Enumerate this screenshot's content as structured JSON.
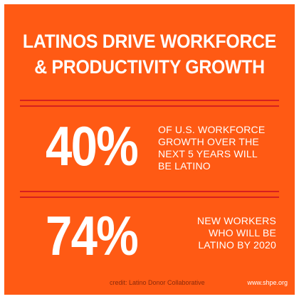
{
  "title": {
    "line1": "LATINOS DRIVE WORKFORCE",
    "line2": "& PRODUCTIVITY GROWTH"
  },
  "stats": [
    {
      "value": "40%",
      "lines": [
        "OF U.S. WORKFORCE",
        "GROWTH OVER THE",
        "NEXT 5 YEARS WILL",
        "BE LATINO"
      ]
    },
    {
      "value": "74%",
      "lines": [
        "NEW WORKERS",
        "WHO WILL BE",
        "LATINO BY 2020"
      ]
    }
  ],
  "footer": {
    "credit": "credit: Latino Donor Collaborative",
    "website": "www.shpe.org"
  },
  "colors": {
    "background": "#ff5a14",
    "rule": "#d61f1f",
    "text": "#ffffff",
    "credit_text": "#8a2a0a"
  }
}
